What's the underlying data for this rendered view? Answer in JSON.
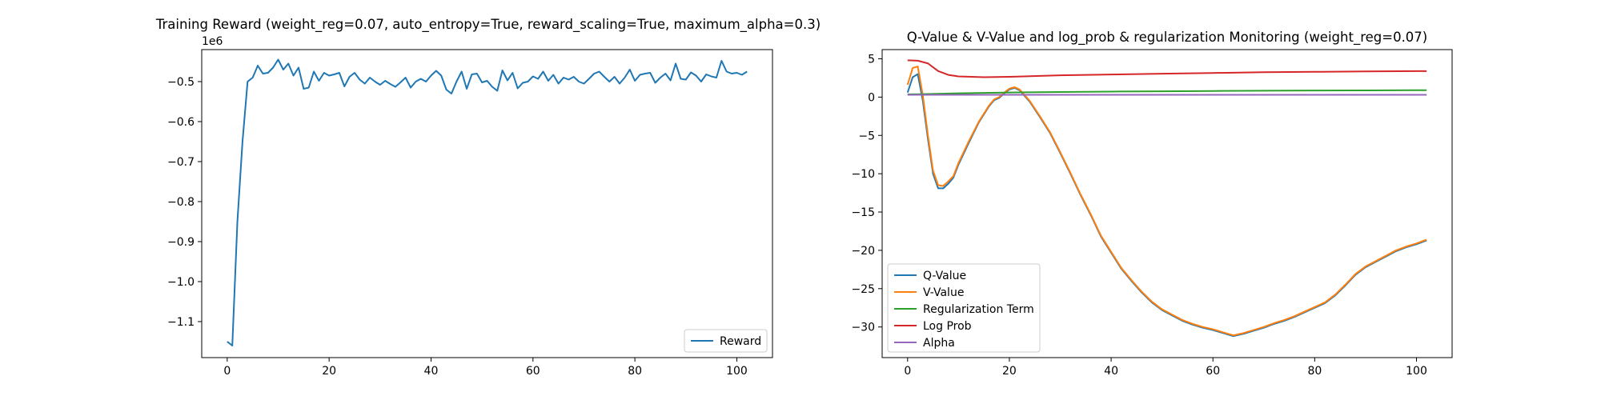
{
  "chart_data": [
    {
      "type": "line",
      "title": "Training Reward (weight_reg=0.07, auto_entropy=True, reward_scaling=True, maximum_alpha=0.3)",
      "xlabel": "",
      "ylabel": "",
      "offset_text": "1e6",
      "xlim": [
        -5,
        107
      ],
      "ylim": [
        -1190000,
        -420000
      ],
      "x_ticks": [
        0,
        20,
        40,
        60,
        80,
        100
      ],
      "x_tick_labels": [
        "0",
        "20",
        "40",
        "60",
        "80",
        "100"
      ],
      "y_ticks": [
        -1100000,
        -1000000,
        -900000,
        -800000,
        -700000,
        -600000,
        -500000
      ],
      "y_tick_labels": [
        "−1.1",
        "−1.0",
        "−0.9",
        "−0.8",
        "−0.7",
        "−0.6",
        "−0.5"
      ],
      "grid": false,
      "legend_position": "lower-right",
      "series": [
        {
          "name": "Reward",
          "color": "#1f77b4",
          "x": [
            0,
            1,
            2,
            3,
            4,
            5,
            6,
            7,
            8,
            9,
            10,
            11,
            12,
            13,
            14,
            15,
            16,
            17,
            18,
            19,
            20,
            21,
            22,
            23,
            24,
            25,
            26,
            27,
            28,
            29,
            30,
            31,
            32,
            33,
            34,
            35,
            36,
            37,
            38,
            39,
            40,
            41,
            42,
            43,
            44,
            45,
            46,
            47,
            48,
            49,
            50,
            51,
            52,
            53,
            54,
            55,
            56,
            57,
            58,
            59,
            60,
            61,
            62,
            63,
            64,
            65,
            66,
            67,
            68,
            69,
            70,
            71,
            72,
            73,
            74,
            75,
            76,
            77,
            78,
            79,
            80,
            81,
            82,
            83,
            84,
            85,
            86,
            87,
            88,
            89,
            90,
            91,
            92,
            93,
            94,
            95,
            96,
            97,
            98,
            99,
            100,
            101,
            102
          ],
          "y": [
            -1150000,
            -1160000,
            -850000,
            -650000,
            -500000,
            -490000,
            -460000,
            -480000,
            -478000,
            -465000,
            -445000,
            -470000,
            -455000,
            -485000,
            -465000,
            -518000,
            -515000,
            -475000,
            -498000,
            -478000,
            -485000,
            -482000,
            -478000,
            -512000,
            -488000,
            -478000,
            -495000,
            -505000,
            -490000,
            -500000,
            -508000,
            -498000,
            -506000,
            -513000,
            -502000,
            -490000,
            -515000,
            -500000,
            -493000,
            -500000,
            -485000,
            -473000,
            -485000,
            -520000,
            -530000,
            -500000,
            -475000,
            -518000,
            -482000,
            -480000,
            -502000,
            -498000,
            -513000,
            -523000,
            -472000,
            -497000,
            -478000,
            -517000,
            -503000,
            -500000,
            -487000,
            -493000,
            -475000,
            -498000,
            -483000,
            -505000,
            -490000,
            -495000,
            -488000,
            -500000,
            -505000,
            -493000,
            -480000,
            -475000,
            -488000,
            -500000,
            -488000,
            -505000,
            -490000,
            -470000,
            -498000,
            -483000,
            -480000,
            -478000,
            -503000,
            -490000,
            -480000,
            -497000,
            -455000,
            -493000,
            -495000,
            -477000,
            -485000,
            -500000,
            -482000,
            -487000,
            -490000,
            -448000,
            -475000,
            -480000,
            -478000,
            -483000,
            -475000
          ]
        }
      ]
    },
    {
      "type": "line",
      "title": "Q-Value & V-Value and log_prob & regularization Monitoring (weight_reg=0.07)",
      "xlabel": "",
      "ylabel": "",
      "xlim": [
        -5,
        107
      ],
      "ylim": [
        -34,
        6.2
      ],
      "x_ticks": [
        0,
        20,
        40,
        60,
        80,
        100
      ],
      "x_tick_labels": [
        "0",
        "20",
        "40",
        "60",
        "80",
        "100"
      ],
      "y_ticks": [
        -30,
        -25,
        -20,
        -15,
        -10,
        -5,
        0,
        5
      ],
      "y_tick_labels": [
        "−30",
        "−25",
        "−20",
        "−15",
        "−10",
        "−5",
        "0",
        "5"
      ],
      "grid": false,
      "legend_position": "lower-left",
      "series": [
        {
          "name": "Q-Value",
          "color": "#1f77b4",
          "x": [
            0,
            1,
            2,
            3,
            4,
            5,
            6,
            7,
            8,
            9,
            10,
            12,
            14,
            16,
            17,
            18,
            19,
            20,
            21,
            22,
            24,
            26,
            28,
            30,
            32,
            34,
            36,
            38,
            40,
            42,
            44,
            46,
            48,
            50,
            52,
            54,
            56,
            58,
            60,
            62,
            64,
            66,
            68,
            70,
            72,
            74,
            76,
            78,
            80,
            82,
            84,
            86,
            88,
            90,
            92,
            94,
            96,
            98,
            100,
            102
          ],
          "y": [
            0.6,
            2.6,
            3.0,
            -0.5,
            -5.5,
            -10.0,
            -11.9,
            -11.9,
            -11.3,
            -10.5,
            -8.8,
            -6.0,
            -3.3,
            -1.2,
            -0.4,
            -0.1,
            0.5,
            1.0,
            1.2,
            0.9,
            -0.6,
            -2.6,
            -4.7,
            -7.3,
            -10.0,
            -12.8,
            -15.4,
            -18.2,
            -20.3,
            -22.4,
            -24.0,
            -25.5,
            -26.8,
            -27.8,
            -28.5,
            -29.2,
            -29.7,
            -30.1,
            -30.4,
            -30.8,
            -31.2,
            -30.9,
            -30.5,
            -30.1,
            -29.6,
            -29.2,
            -28.7,
            -28.1,
            -27.5,
            -26.9,
            -25.9,
            -24.6,
            -23.2,
            -22.2,
            -21.5,
            -20.8,
            -20.1,
            -19.6,
            -19.2,
            -18.7
          ]
        },
        {
          "name": "V-Value",
          "color": "#ff7f0e",
          "x": [
            0,
            1,
            2,
            3,
            4,
            5,
            6,
            7,
            8,
            9,
            10,
            12,
            14,
            16,
            17,
            18,
            19,
            20,
            21,
            22,
            24,
            26,
            28,
            30,
            32,
            34,
            36,
            38,
            40,
            42,
            44,
            46,
            48,
            50,
            52,
            54,
            56,
            58,
            60,
            62,
            64,
            66,
            68,
            70,
            72,
            74,
            76,
            78,
            80,
            82,
            84,
            86,
            88,
            90,
            92,
            94,
            96,
            98,
            100,
            102
          ],
          "y": [
            1.6,
            3.8,
            4.0,
            0.2,
            -5.0,
            -9.6,
            -11.5,
            -11.6,
            -11.0,
            -10.3,
            -8.6,
            -5.8,
            -3.2,
            -1.1,
            -0.3,
            0.0,
            0.6,
            1.1,
            1.3,
            1.0,
            -0.5,
            -2.5,
            -4.6,
            -7.2,
            -9.9,
            -12.7,
            -15.3,
            -18.1,
            -20.2,
            -22.3,
            -23.9,
            -25.4,
            -26.7,
            -27.7,
            -28.4,
            -29.1,
            -29.6,
            -30.0,
            -30.3,
            -30.7,
            -31.1,
            -30.8,
            -30.4,
            -30.0,
            -29.5,
            -29.1,
            -28.6,
            -28.0,
            -27.4,
            -26.8,
            -25.8,
            -24.5,
            -23.1,
            -22.1,
            -21.4,
            -20.7,
            -20.0,
            -19.5,
            -19.1,
            -18.6
          ]
        },
        {
          "name": "Regularization Term",
          "color": "#2ca02c",
          "x": [
            0,
            10,
            20,
            30,
            40,
            50,
            60,
            70,
            80,
            90,
            100,
            102
          ],
          "y": [
            0.35,
            0.5,
            0.6,
            0.67,
            0.72,
            0.76,
            0.8,
            0.83,
            0.86,
            0.88,
            0.9,
            0.9
          ]
        },
        {
          "name": "Log Prob",
          "color": "#d62728",
          "x": [
            0,
            2,
            4,
            6,
            8,
            10,
            15,
            20,
            30,
            40,
            50,
            60,
            70,
            80,
            90,
            100,
            102
          ],
          "y": [
            4.8,
            4.75,
            4.4,
            3.4,
            2.9,
            2.7,
            2.6,
            2.65,
            2.85,
            2.95,
            3.05,
            3.15,
            3.25,
            3.3,
            3.35,
            3.4,
            3.4
          ]
        },
        {
          "name": "Alpha",
          "color": "#9467bd",
          "x": [
            0,
            20,
            40,
            60,
            80,
            100,
            102
          ],
          "y": [
            0.3,
            0.3,
            0.3,
            0.3,
            0.3,
            0.3,
            0.3
          ]
        }
      ]
    }
  ]
}
